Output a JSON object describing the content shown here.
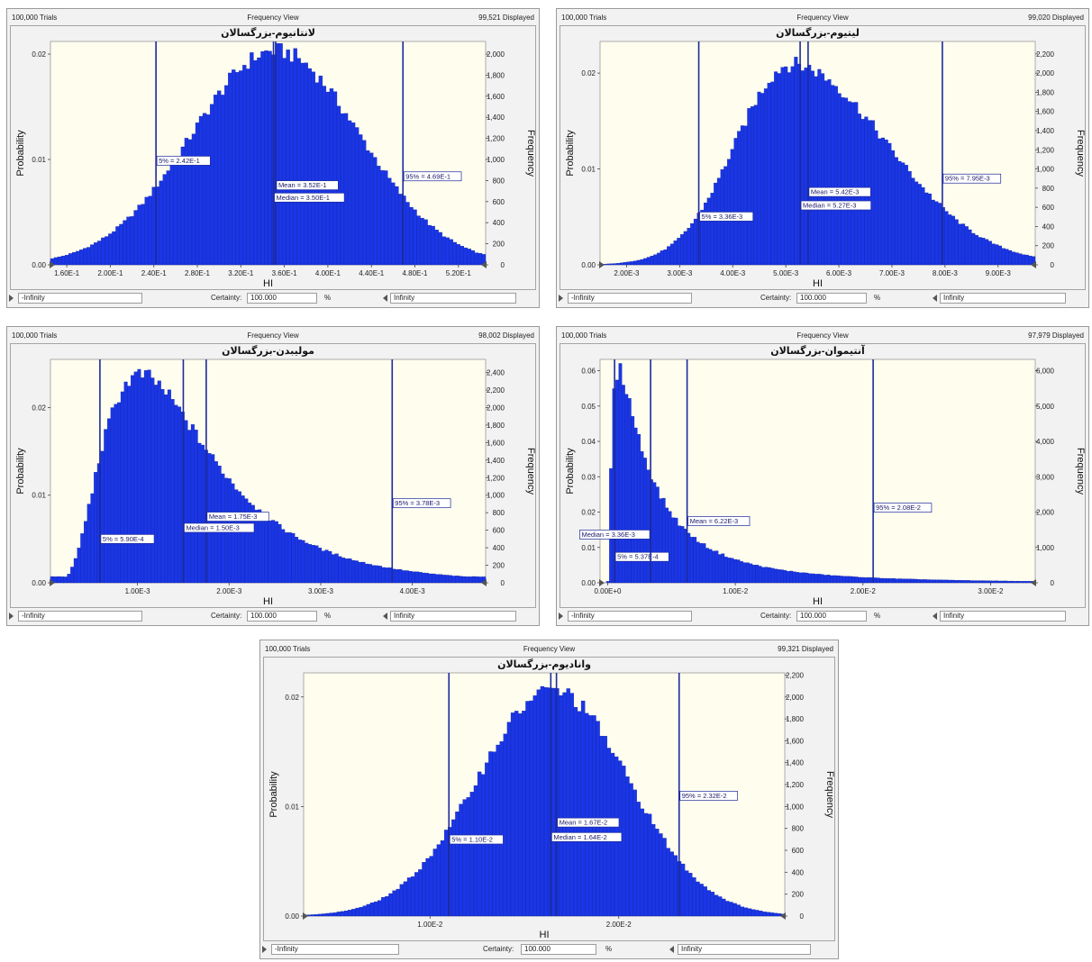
{
  "panels": [
    {
      "trials": "100,000 Trials",
      "view": "Frequency View",
      "displayed": "99,521 Displayed",
      "left_bound": "-Infinity",
      "certainty_label": "Certainty:",
      "certainty_value": "100.000",
      "percent": "%",
      "right_bound": "Infinity"
    },
    {
      "trials": "100,000 Trials",
      "view": "Frequency View",
      "displayed": "99,020 Displayed",
      "left_bound": "-Infinity",
      "certainty_label": "Certainty:",
      "certainty_value": "100.000",
      "percent": "%",
      "right_bound": "Infinity"
    },
    {
      "trials": "100,000 Trials",
      "view": "Frequency View",
      "displayed": "98,002 Displayed",
      "left_bound": "-Infinity",
      "certainty_label": "Certainty:",
      "certainty_value": "100.000",
      "percent": "%",
      "right_bound": "Infinity"
    },
    {
      "trials": "100,000 Trials",
      "view": "Frequency View",
      "displayed": "97,979 Displayed",
      "left_bound": "-Infinity",
      "certainty_label": "Certainty:",
      "certainty_value": "100.000",
      "percent": "%",
      "right_bound": "Infinity"
    },
    {
      "trials": "100,000 Trials",
      "view": "Frequency View",
      "displayed": "99,321 Displayed",
      "left_bound": "-Infinity",
      "certainty_label": "Certainty:",
      "certainty_value": "100.000",
      "percent": "%",
      "right_bound": "Infinity"
    }
  ],
  "colors": {
    "bar": "#1a36e6",
    "bar_edge": "#0d1f9c",
    "plot_bg": "#fffdee",
    "marker": "#1c2a9c",
    "frame_bg": "#f2f2f2"
  },
  "chart_data": [
    {
      "type": "bar",
      "title": "لانتانیوم-بزرگسالان",
      "xlabel": "HI",
      "ylabel": "Probability",
      "y2label": "Frequency",
      "xlim": [
        0.145,
        0.545
      ],
      "x_ticks": [
        "1.60E-1",
        "2.00E-1",
        "2.40E-1",
        "2.80E-1",
        "3.20E-1",
        "3.60E-1",
        "4.00E-1",
        "4.40E-1",
        "4.80E-1",
        "5.20E-1"
      ],
      "x_tick_values": [
        0.16,
        0.2,
        0.24,
        0.28,
        0.32,
        0.36,
        0.4,
        0.44,
        0.48,
        0.52
      ],
      "y_ticks": [
        "0.00",
        "0.01",
        "0.02"
      ],
      "y_tick_values": [
        0,
        0.01,
        0.02
      ],
      "ylim": [
        0,
        0.0212
      ],
      "y2_ticks": [
        "0",
        "200",
        "400",
        "600",
        "800",
        "1,000",
        "1,200",
        "1,400",
        "1,600",
        "1,800",
        "2,000"
      ],
      "y2_tick_values": [
        0,
        200,
        400,
        600,
        800,
        1000,
        1200,
        1400,
        1600,
        1800,
        2000
      ],
      "y2lim": [
        0,
        2120
      ],
      "bins": 120,
      "distribution": {
        "shape": "normal",
        "mean": 0.352,
        "sd": 0.0775,
        "peak_probability": 0.0203
      },
      "markers": [
        {
          "label": "5% = 2.42E-1",
          "x": 0.242,
          "side": "right",
          "level": 0.45
        },
        {
          "label": "Mean = 3.52E-1",
          "x": 0.352,
          "side": "right",
          "level": 0.34
        },
        {
          "label": "Median = 3.50E-1",
          "x": 0.35,
          "side": "right",
          "level": 0.285
        },
        {
          "label": "95% = 4.69E-1",
          "x": 0.469,
          "side": "right",
          "level": 0.38
        }
      ]
    },
    {
      "type": "bar",
      "title": "لیتیوم-بزرگسالان",
      "xlabel": "HI",
      "ylabel": "Probability",
      "y2label": "Frequency",
      "xlim": [
        0.0015,
        0.0097
      ],
      "x_ticks": [
        "2.00E-3",
        "3.00E-3",
        "4.00E-3",
        "5.00E-3",
        "6.00E-3",
        "7.00E-3",
        "8.00E-3",
        "9.00E-3"
      ],
      "x_tick_values": [
        0.002,
        0.003,
        0.004,
        0.005,
        0.006,
        0.007,
        0.008,
        0.009
      ],
      "y_ticks": [
        "0.00",
        "0.01",
        "0.02"
      ],
      "y_tick_values": [
        0,
        0.01,
        0.02
      ],
      "ylim": [
        0,
        0.0233
      ],
      "y2_ticks": [
        "0",
        "200",
        "400",
        "600",
        "800",
        "1,000",
        "1,200",
        "1,400",
        "1,600",
        "1,800",
        "2,000",
        "2,200"
      ],
      "y2_tick_values": [
        0,
        200,
        400,
        600,
        800,
        1000,
        1200,
        1400,
        1600,
        1800,
        2000,
        2200
      ],
      "y2lim": [
        0,
        2330
      ],
      "bins": 130,
      "distribution": {
        "shape": "skew",
        "mode": 0.0051,
        "sd_left": 0.00105,
        "sd_right": 0.0018,
        "peak_probability": 0.0209
      },
      "markers": [
        {
          "label": "5% = 3.36E-3",
          "x": 0.00336,
          "side": "right",
          "level": 0.2
        },
        {
          "label": "Mean = 5.42E-3",
          "x": 0.00542,
          "side": "right",
          "level": 0.31
        },
        {
          "label": "Median = 5.27E-3",
          "x": 0.00527,
          "side": "right",
          "level": 0.25
        },
        {
          "label": "95% = 7.95E-3",
          "x": 0.00795,
          "side": "right",
          "level": 0.37
        }
      ]
    },
    {
      "type": "bar",
      "title": "مولیبدن-بزرگسالان",
      "xlabel": "HI",
      "ylabel": "Probability",
      "y2label": "Frequency",
      "xlim": [
        5e-05,
        0.0048
      ],
      "x_ticks": [
        "1.00E-3",
        "2.00E-3",
        "3.00E-3",
        "4.00E-3"
      ],
      "x_tick_values": [
        0.001,
        0.002,
        0.003,
        0.004
      ],
      "y_ticks": [
        "0.00",
        "0.01",
        "0.02"
      ],
      "y_tick_values": [
        0,
        0.01,
        0.02
      ],
      "ylim": [
        0,
        0.0255
      ],
      "y2_ticks": [
        "0",
        "200",
        "400",
        "600",
        "800",
        "1,000",
        "1,200",
        "1,400",
        "1,600",
        "1,800",
        "2,000",
        "2,200",
        "2,400"
      ],
      "y2_tick_values": [
        0,
        200,
        400,
        600,
        800,
        1000,
        1200,
        1400,
        1600,
        1800,
        2000,
        2200,
        2400
      ],
      "y2lim": [
        0,
        2550
      ],
      "bins": 130,
      "distribution": {
        "shape": "lognormal",
        "mu": -6.56,
        "sigma": 0.56,
        "peak_probability": 0.0237,
        "baseline_probability": 0.0007
      },
      "markers": [
        {
          "label": "5% = 5.90E-4",
          "x": 0.00059,
          "side": "right",
          "level": 0.18
        },
        {
          "label": "Mean = 1.75E-3",
          "x": 0.00175,
          "side": "right",
          "level": 0.28
        },
        {
          "label": "Median = 1.50E-3",
          "x": 0.0015,
          "side": "right",
          "level": 0.23
        },
        {
          "label": "95% = 3.78E-3",
          "x": 0.00378,
          "side": "right",
          "level": 0.34
        }
      ]
    },
    {
      "type": "bar",
      "title": "آنتیموان-بزرگسالان",
      "xlabel": "HI",
      "ylabel": "Probability",
      "y2label": "Frequency",
      "xlim": [
        -0.0006,
        0.0335
      ],
      "x_ticks": [
        "0.00E+0",
        "1.00E-2",
        "2.00E-2",
        "3.00E-2"
      ],
      "x_tick_values": [
        0,
        0.01,
        0.02,
        0.03
      ],
      "y_ticks": [
        "0.00",
        "0.01",
        "0.02",
        "0.03",
        "0.04",
        "0.05",
        "0.06"
      ],
      "y_tick_values": [
        0,
        0.01,
        0.02,
        0.03,
        0.04,
        0.05,
        0.06
      ],
      "ylim": [
        0,
        0.0632
      ],
      "y2_ticks": [
        "0",
        "1,000",
        "2,000",
        "3,000",
        "4,000",
        "5,000",
        "6,000"
      ],
      "y2_tick_values": [
        0,
        1000,
        2000,
        3000,
        4000,
        5000,
        6000
      ],
      "y2lim": [
        0,
        6320
      ],
      "bins": 140,
      "distribution": {
        "shape": "lognormal",
        "mu": -5.7,
        "sigma": 1.15,
        "peak_probability": 0.06,
        "baseline_probability": 0.0004
      },
      "markers": [
        {
          "label": "5% = 5.37E-4",
          "x": 0.000537,
          "side": "right",
          "level": 0.1
        },
        {
          "label": "Mean = 6.22E-3",
          "x": 0.00622,
          "side": "right",
          "level": 0.26
        },
        {
          "label": "Median = 3.36E-3",
          "x": 0.00336,
          "side": "left",
          "level": 0.2
        },
        {
          "label": "95% = 2.08E-2",
          "x": 0.0208,
          "side": "right",
          "level": 0.32
        }
      ]
    },
    {
      "type": "bar",
      "title": "وانادیوم-بزرگسالان",
      "xlabel": "HI",
      "ylabel": "Probability",
      "y2label": "Frequency",
      "xlim": [
        0.0033,
        0.0288
      ],
      "x_ticks": [
        "1.00E-2",
        "2.00E-2"
      ],
      "x_tick_values": [
        0.01,
        0.02
      ],
      "y_ticks": [
        "0.00",
        "0.01",
        "0.02"
      ],
      "y_tick_values": [
        0,
        0.01,
        0.02
      ],
      "ylim": [
        0,
        0.0222
      ],
      "y2_ticks": [
        "0",
        "200",
        "400",
        "600",
        "800",
        "1,000",
        "1,200",
        "1,400",
        "1,600",
        "1,800",
        "2,000",
        "2,200"
      ],
      "y2_tick_values": [
        0,
        200,
        400,
        600,
        800,
        1000,
        1200,
        1400,
        1600,
        1800,
        2000,
        2200
      ],
      "y2lim": [
        0,
        2220
      ],
      "bins": 130,
      "distribution": {
        "shape": "normal",
        "mean": 0.0165,
        "sd": 0.004,
        "peak_probability": 0.0206
      },
      "markers": [
        {
          "label": "5% = 1.10E-2",
          "x": 0.011,
          "side": "right",
          "level": 0.3
        },
        {
          "label": "Mean = 1.67E-2",
          "x": 0.0167,
          "side": "right",
          "level": 0.37
        },
        {
          "label": "Median = 1.64E-2",
          "x": 0.0164,
          "side": "right",
          "level": 0.31
        },
        {
          "label": "95% = 2.32E-2",
          "x": 0.0232,
          "side": "right",
          "level": 0.48
        }
      ]
    }
  ]
}
